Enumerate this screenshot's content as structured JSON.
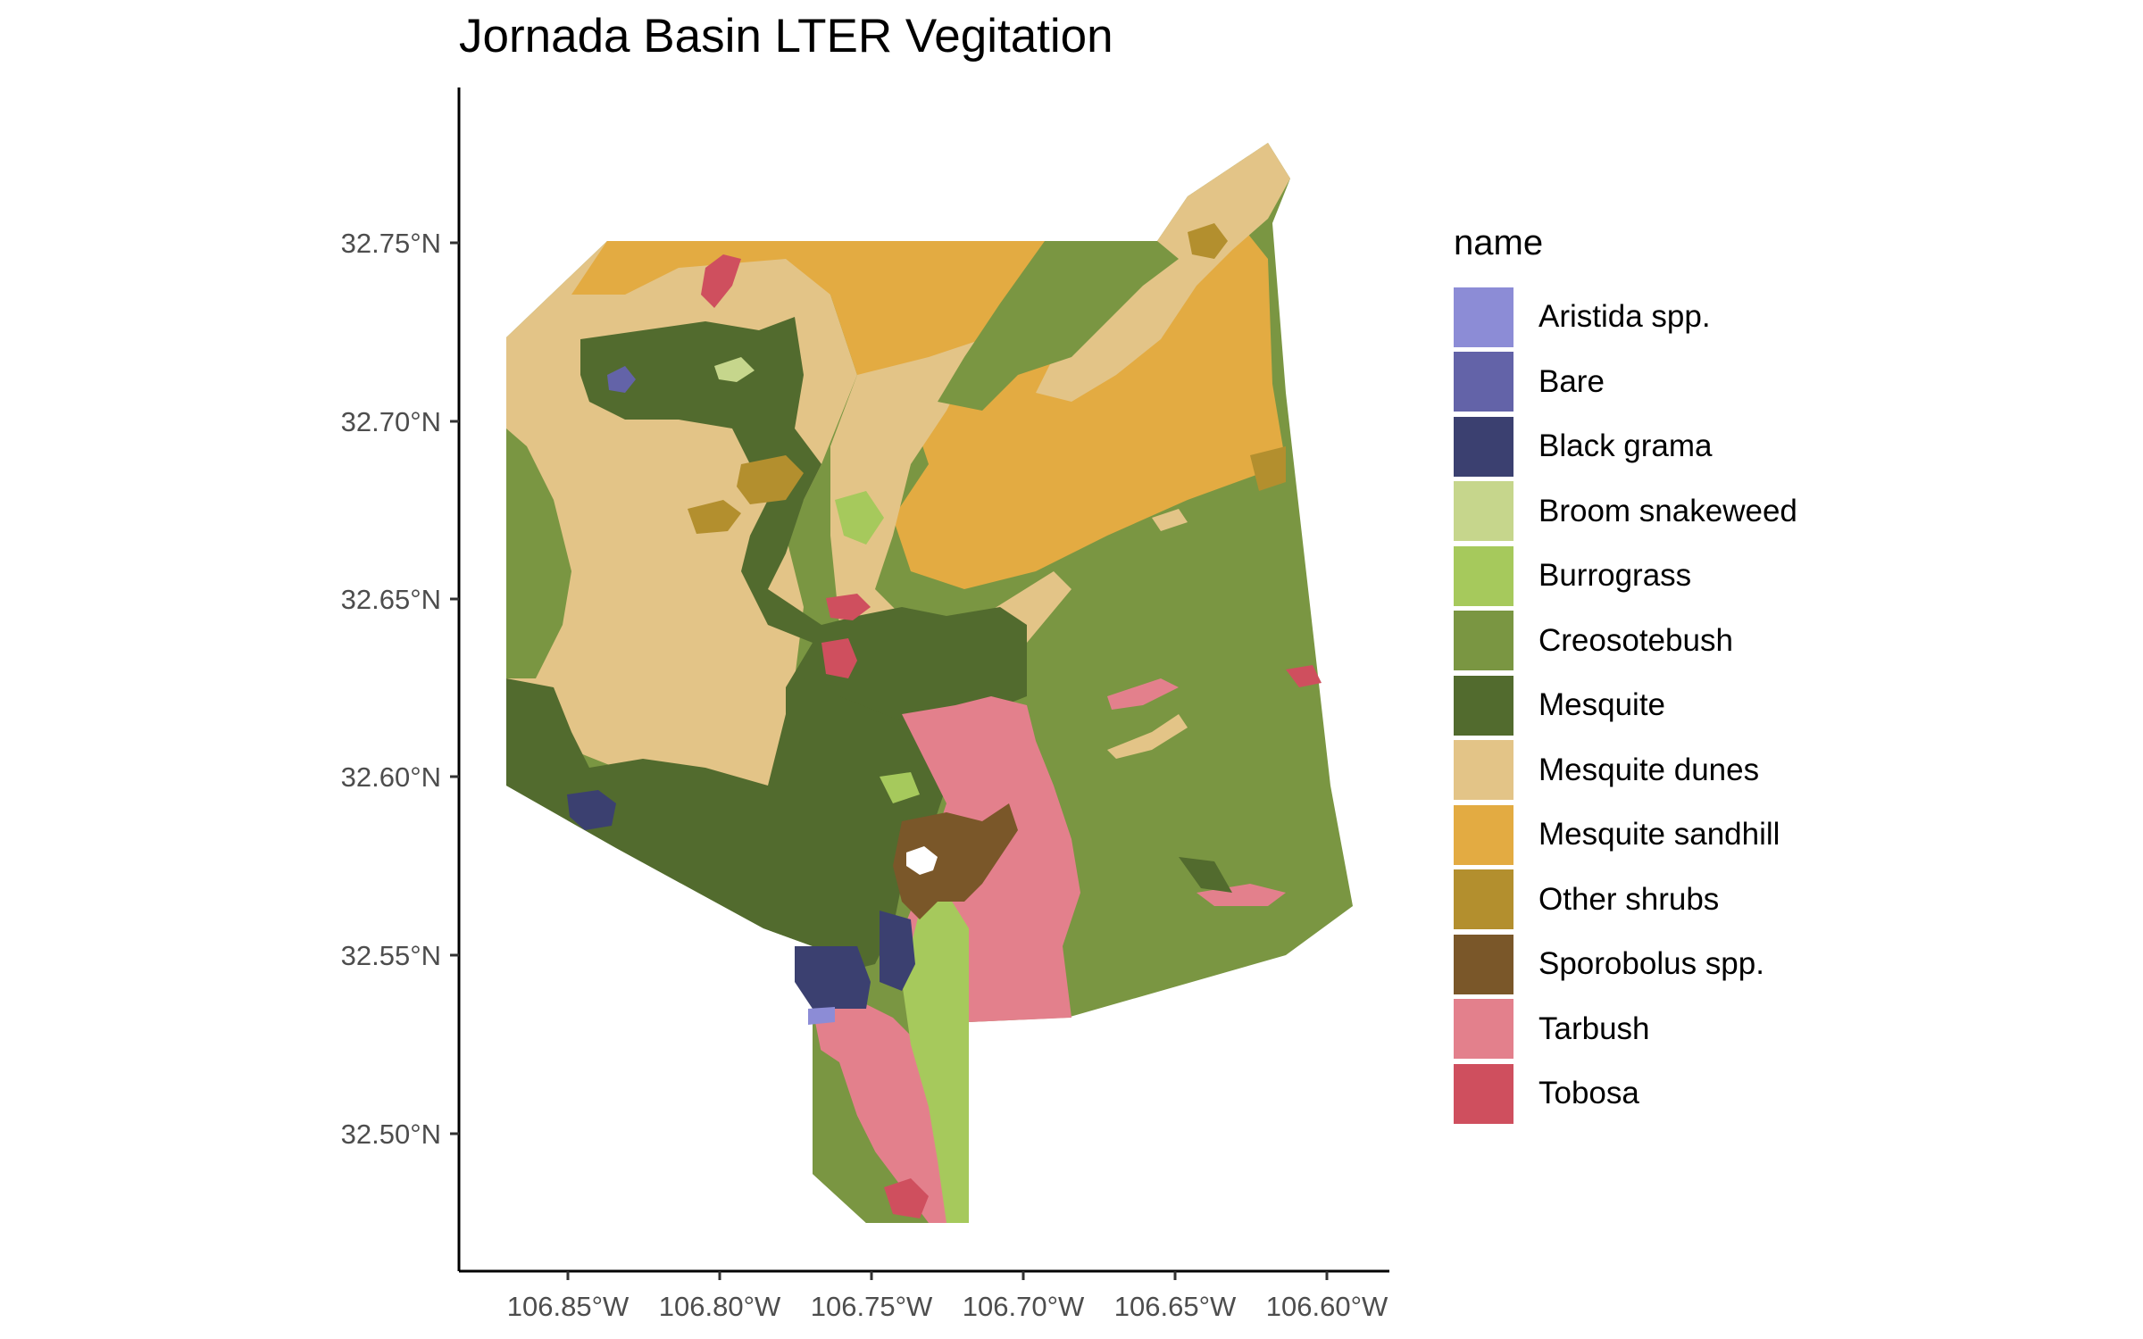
{
  "title": "Jornada Basin LTER Vegitation",
  "axes": {
    "y_ticks": [
      "32.75°N",
      "32.70°N",
      "32.65°N",
      "32.60°N",
      "32.55°N",
      "32.50°N"
    ],
    "x_ticks": [
      "106.85°W",
      "106.80°W",
      "106.75°W",
      "106.70°W",
      "106.65°W",
      "106.60°W"
    ]
  },
  "legend": {
    "title": "name",
    "items": [
      {
        "label": "Aristida spp.",
        "color": "#8c8cd6"
      },
      {
        "label": "Bare",
        "color": "#6363a8"
      },
      {
        "label": "Black grama",
        "color": "#3b4070"
      },
      {
        "label": "Broom snakeweed",
        "color": "#c6d68c"
      },
      {
        "label": "Burrograss",
        "color": "#a6c95c"
      },
      {
        "label": "Creosotebush",
        "color": "#7a9642"
      },
      {
        "label": "Mesquite",
        "color": "#526b2e"
      },
      {
        "label": "Mesquite dunes",
        "color": "#e3c487"
      },
      {
        "label": "Mesquite sandhill",
        "color": "#e3ab42"
      },
      {
        "label": "Other shrubs",
        "color": "#b38f2e"
      },
      {
        "label": "Sporobolus spp.",
        "color": "#7a5729"
      },
      {
        "label": "Tarbush",
        "color": "#e3808c"
      },
      {
        "label": "Tobosa",
        "color": "#cf4f5e"
      }
    ]
  }
}
